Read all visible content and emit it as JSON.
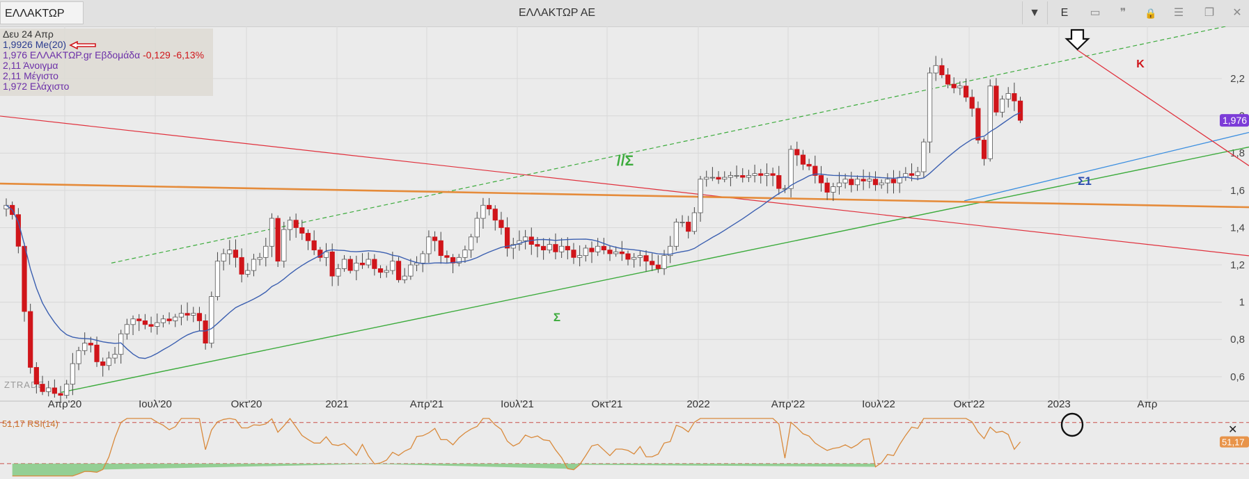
{
  "window": {
    "symbol": "ΕΛΛΑΚΤΩΡ",
    "title": "ΕΛΛΑΚΤΩΡ ΑΕ",
    "controls": [
      {
        "name": "dropdown-arrow-icon",
        "glyph": "▼"
      },
      {
        "name": "e-button",
        "glyph": "E"
      },
      {
        "name": "chart-icon",
        "glyph": "▭"
      },
      {
        "name": "quote-icon",
        "glyph": "❞"
      },
      {
        "name": "lock-icon",
        "glyph": "🔒"
      },
      {
        "name": "menu-icon",
        "glyph": "☰"
      },
      {
        "name": "restore-icon",
        "glyph": "❐"
      },
      {
        "name": "close-icon",
        "glyph": "✕"
      }
    ]
  },
  "info_panel": {
    "date": "Δευ 24 Απρ",
    "ma_line": "1,9926 Me(20)",
    "price_prefix": "1,976 ΕΛΛΑΚΤΩΡ.gr Εβδομάδα",
    "change": "-0,129 -6,13%",
    "open": "2,11 Άνοιγμα",
    "high": "2,11 Μέγιστο",
    "low": "1,972 Ελάχιστο"
  },
  "chart_data": {
    "type": "candlestick",
    "interval": "weekly",
    "symbol": "ΕΛΛΑΚΤΩΡ",
    "x_tick_labels": [
      "Απρ'20",
      "Ιουλ'20",
      "Οκτ'20",
      "2021",
      "Απρ'21",
      "Ιουλ'21",
      "Οκτ'21",
      "2022",
      "Απρ'22",
      "Ιουλ'22",
      "Οκτ'22",
      "2023",
      "Απρ"
    ],
    "y_ticks": [
      0.6,
      0.8,
      1,
      1.2,
      1.4,
      1.6,
      1.8,
      2,
      2.2
    ],
    "y_tick_labels": [
      "0,6",
      "0,8",
      "1",
      "1,2",
      "1,4",
      "1,6",
      "1,8",
      "2",
      "2,2"
    ],
    "ylim": [
      0.48,
      2.48
    ],
    "last_price": 1.976,
    "last_price_label": "1,976",
    "weekly_closes": [
      1.52,
      1.47,
      1.3,
      0.95,
      0.65,
      0.56,
      0.52,
      0.54,
      0.51,
      0.5,
      0.56,
      0.67,
      0.74,
      0.78,
      0.77,
      0.68,
      0.66,
      0.7,
      0.72,
      0.83,
      0.88,
      0.91,
      0.9,
      0.88,
      0.87,
      0.89,
      0.91,
      0.9,
      0.92,
      0.94,
      0.93,
      0.94,
      0.9,
      0.78,
      1.03,
      1.22,
      1.26,
      1.28,
      1.24,
      1.15,
      1.17,
      1.23,
      1.24,
      1.3,
      1.45,
      1.22,
      1.39,
      1.44,
      1.4,
      1.37,
      1.33,
      1.28,
      1.24,
      1.27,
      1.14,
      1.18,
      1.23,
      1.17,
      1.21,
      1.2,
      1.23,
      1.18,
      1.16,
      1.17,
      1.22,
      1.12,
      1.14,
      1.2,
      1.21,
      1.26,
      1.35,
      1.33,
      1.25,
      1.24,
      1.21,
      1.24,
      1.28,
      1.35,
      1.45,
      1.52,
      1.5,
      1.44,
      1.4,
      1.29,
      1.31,
      1.33,
      1.35,
      1.31,
      1.3,
      1.28,
      1.31,
      1.27,
      1.3,
      1.28,
      1.24,
      1.25,
      1.29,
      1.27,
      1.3,
      1.28,
      1.26,
      1.27,
      1.26,
      1.23,
      1.24,
      1.25,
      1.22,
      1.2,
      1.18,
      1.25,
      1.3,
      1.43,
      1.43,
      1.38,
      1.48,
      1.66,
      1.67,
      1.67,
      1.66,
      1.67,
      1.68,
      1.68,
      1.67,
      1.68,
      1.69,
      1.68,
      1.69,
      1.68,
      1.61,
      1.61,
      1.82,
      1.79,
      1.74,
      1.73,
      1.68,
      1.64,
      1.59,
      1.62,
      1.64,
      1.66,
      1.63,
      1.66,
      1.65,
      1.66,
      1.63,
      1.64,
      1.66,
      1.64,
      1.67,
      1.69,
      1.68,
      1.7,
      1.86,
      2.23,
      2.27,
      2.22,
      2.17,
      2.15,
      2.16,
      2.1,
      2.04,
      1.87,
      1.77,
      2.16,
      2.02,
      2.09,
      2.12,
      2.08,
      1.976
    ],
    "series": [
      {
        "name": "Me(20)",
        "type": "moving_average",
        "period": 20,
        "last_value": 1.9926
      }
    ],
    "trendlines": [
      {
        "label": "Σ",
        "type": "support",
        "points": [
          [
            "Απρ'20",
            0.52
          ],
          [
            "Απρ",
            1.72
          ]
        ]
      },
      {
        "label": "//Σ",
        "type": "parallel_channel",
        "points": [
          [
            "Ιουλ'20",
            1.26
          ],
          [
            "2023",
            2.29
          ]
        ]
      },
      {
        "label": "Σ1",
        "type": "support",
        "points": [
          [
            "Οκτ'22",
            1.55
          ],
          [
            "Απρ",
            1.78
          ]
        ]
      },
      {
        "label": "K",
        "type": "resistance",
        "points": [
          [
            "2023",
            2.42
          ],
          [
            "Απρ",
            2.1
          ]
        ]
      },
      {
        "type": "resistance",
        "points": [
          [
            "Απρ'20",
            1.96
          ],
          [
            "Απρ",
            1.31
          ]
        ]
      },
      {
        "type": "horizontal",
        "points": [
          [
            "Απρ'20",
            1.63
          ],
          [
            "Απρ",
            1.52
          ]
        ]
      }
    ],
    "annotations": [
      {
        "label": "//Σ"
      },
      {
        "label": "Σ"
      },
      {
        "label": "Σ1"
      },
      {
        "label": "K"
      }
    ],
    "rsi": {
      "label": "51,17 RSI(14)",
      "period": 14,
      "last_value": 51.17,
      "last_value_label": "51,17",
      "upper_band": 70,
      "lower_band": 30
    },
    "watermark": "ZTRADE",
    "grid": true
  },
  "colors": {
    "up": "#ffffff",
    "down": "#d0151a",
    "ma": "#3b5fb0",
    "rsi": "#d98a3c",
    "green_line": "#3cab3c",
    "red_line": "#e0303c",
    "orange_line": "#e58b3a",
    "blue_line": "#3a8ee0",
    "badge": "#7c3cd8",
    "annotation_green": "#3cab3c",
    "annotation_blue": "#2a4bb0",
    "annotation_red": "#d0151a"
  }
}
